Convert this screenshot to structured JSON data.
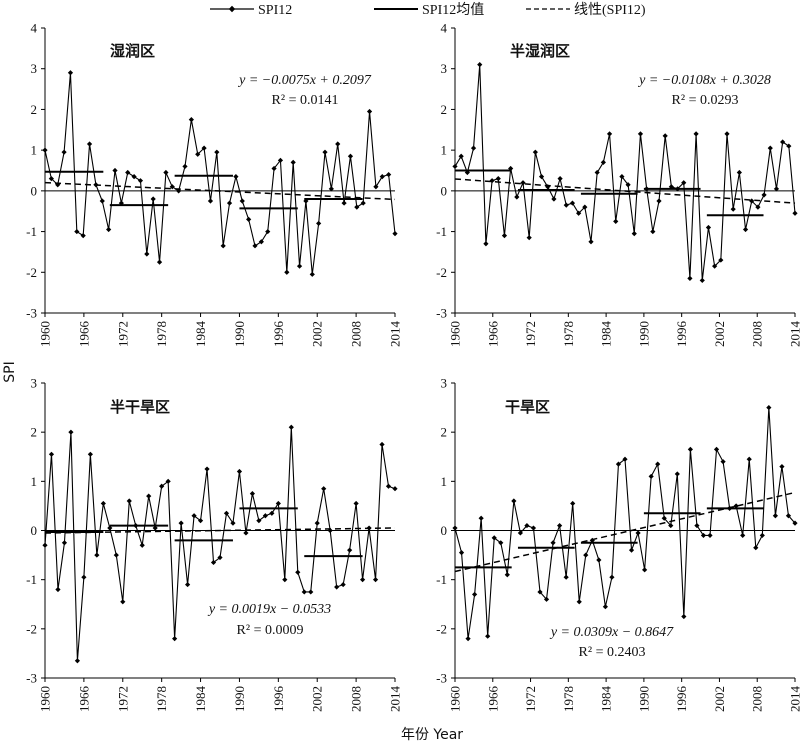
{
  "legend": {
    "items": [
      {
        "label": "SPI12",
        "style": "marker"
      },
      {
        "label": "SPI12均值",
        "style": "solid"
      },
      {
        "label": "线性(SPI12)",
        "style": "dashed"
      }
    ]
  },
  "axes": {
    "ylabel": "SPI",
    "xlabel": "年份 Year"
  },
  "chart_data": [
    {
      "type": "line",
      "title": "湿润区",
      "equation": "y = −0.0075x + 0.2097",
      "r2": "R² = 0.0141",
      "ylim": [
        -3,
        4
      ],
      "yticks": [
        4,
        3,
        2,
        1,
        0,
        -1,
        -2,
        -3
      ],
      "xticks": [
        "1960",
        "1966",
        "1972",
        "1978",
        "1984",
        "1990",
        "1996",
        "2002",
        "2008",
        "2014"
      ],
      "x_start": 1960,
      "x_end": 2014,
      "series": [
        {
          "name": "SPI12",
          "values": [
            1.0,
            0.3,
            0.15,
            0.95,
            2.9,
            -1.0,
            -1.1,
            1.15,
            0.15,
            -0.25,
            -0.95,
            0.5,
            -0.3,
            0.45,
            0.35,
            0.25,
            -1.55,
            -0.2,
            -1.75,
            0.45,
            0.1,
            0.0,
            0.6,
            1.75,
            0.9,
            1.05,
            -0.25,
            0.95,
            -1.35,
            -0.3,
            0.35,
            -0.25,
            -0.7,
            -1.35,
            -1.25,
            -1.0,
            0.55,
            0.75,
            -2.0,
            0.7,
            -1.85,
            -0.25,
            -2.05,
            -0.8,
            0.95,
            0.05,
            1.15,
            -0.3,
            0.85,
            -0.4,
            -0.3,
            1.95,
            0.1,
            0.35,
            0.4,
            -1.05
          ]
        }
      ],
      "means": [
        {
          "x": [
            1960,
            1969
          ],
          "y": 0.47
        },
        {
          "x": [
            1970,
            1979
          ],
          "y": -0.35
        },
        {
          "x": [
            1980,
            1989
          ],
          "y": 0.37
        },
        {
          "x": [
            1990,
            1999
          ],
          "y": -0.43
        },
        {
          "x": [
            2000,
            2009
          ],
          "y": -0.2
        }
      ],
      "trend": {
        "slope": -0.0075,
        "intercept": 0.2097
      }
    },
    {
      "type": "line",
      "title": "半湿润区",
      "equation": "y = −0.0108x + 0.3028",
      "r2": "R² = 0.0293",
      "ylim": [
        -3,
        4
      ],
      "yticks": [
        4,
        3,
        2,
        1,
        0,
        -1,
        -2,
        -3
      ],
      "xticks": [
        "1960",
        "1966",
        "1972",
        "1978",
        "1984",
        "1990",
        "1996",
        "2002",
        "2008",
        "2014"
      ],
      "x_start": 1960,
      "x_end": 2014,
      "series": [
        {
          "name": "SPI12",
          "values": [
            0.6,
            0.85,
            0.45,
            1.05,
            3.1,
            -1.3,
            0.25,
            0.3,
            -1.1,
            0.55,
            -0.15,
            0.2,
            -1.15,
            0.95,
            0.35,
            0.1,
            -0.2,
            0.3,
            -0.35,
            -0.3,
            -0.55,
            -0.4,
            -1.25,
            0.45,
            0.7,
            1.4,
            -0.75,
            0.35,
            0.15,
            -1.05,
            1.4,
            0.05,
            -1.0,
            -0.25,
            1.35,
            0.1,
            0.05,
            0.2,
            -2.15,
            1.4,
            -2.2,
            -0.9,
            -1.85,
            -1.7,
            1.4,
            -0.45,
            0.45,
            -0.95,
            -0.25,
            -0.4,
            -0.1,
            1.05,
            0.05,
            1.2,
            1.1,
            -0.55
          ]
        }
      ],
      "means": [
        {
          "x": [
            1960,
            1969
          ],
          "y": 0.5
        },
        {
          "x": [
            1970,
            1979
          ],
          "y": 0.02
        },
        {
          "x": [
            1980,
            1989
          ],
          "y": -0.07
        },
        {
          "x": [
            1990,
            1999
          ],
          "y": 0.05
        },
        {
          "x": [
            2000,
            2009
          ],
          "y": -0.6
        }
      ],
      "trend": {
        "slope": -0.0108,
        "intercept": 0.3028
      }
    },
    {
      "type": "line",
      "title": "半干旱区",
      "equation": "y = 0.0019x − 0.0533",
      "r2": "R² = 0.0009",
      "ylim": [
        -3,
        3
      ],
      "yticks": [
        3,
        2,
        1,
        0,
        -1,
        -2,
        -3
      ],
      "xticks": [
        "1960",
        "1966",
        "1972",
        "1978",
        "1984",
        "1990",
        "1996",
        "2002",
        "2008",
        "2014"
      ],
      "x_start": 1960,
      "x_end": 2014,
      "series": [
        {
          "name": "SPI12",
          "values": [
            -0.3,
            1.55,
            -1.2,
            -0.25,
            2.0,
            -2.65,
            -0.95,
            1.55,
            -0.5,
            0.55,
            0.05,
            -0.5,
            -1.45,
            0.6,
            0.1,
            -0.3,
            0.7,
            0.05,
            0.9,
            1.0,
            -2.2,
            0.15,
            -1.1,
            0.3,
            0.2,
            1.25,
            -0.65,
            -0.55,
            0.35,
            0.15,
            1.2,
            -0.05,
            0.75,
            0.2,
            0.3,
            0.35,
            0.55,
            -1.0,
            2.1,
            -0.85,
            -1.25,
            -1.25,
            0.15,
            0.85,
            0.0,
            -1.15,
            -1.1,
            -0.4,
            0.55,
            -1.0,
            0.05,
            -1.0,
            1.75,
            0.9,
            0.85
          ]
        }
      ],
      "means": [
        {
          "x": [
            1960,
            1969
          ],
          "y": -0.03
        },
        {
          "x": [
            1970,
            1979
          ],
          "y": 0.1
        },
        {
          "x": [
            1980,
            1989
          ],
          "y": -0.2
        },
        {
          "x": [
            1990,
            1999
          ],
          "y": 0.45
        },
        {
          "x": [
            2000,
            2009
          ],
          "y": -0.52
        }
      ],
      "trend": {
        "slope": 0.0019,
        "intercept": -0.0533
      }
    },
    {
      "type": "line",
      "title": "干旱区",
      "equation": "y = 0.0309x − 0.8647",
      "r2": "R² = 0.2403",
      "ylim": [
        -3,
        3
      ],
      "yticks": [
        3,
        2,
        1,
        0,
        -1,
        -2,
        -3
      ],
      "xticks": [
        "1960",
        "1966",
        "1972",
        "1978",
        "1984",
        "1990",
        "1996",
        "2002",
        "2008",
        "2014"
      ],
      "x_start": 1960,
      "x_end": 2014,
      "series": [
        {
          "name": "SPI12",
          "values": [
            0.05,
            -0.45,
            -2.2,
            -1.3,
            0.25,
            -2.15,
            -0.15,
            -0.25,
            -0.9,
            0.6,
            -0.05,
            0.1,
            0.05,
            -1.25,
            -1.4,
            -0.25,
            0.1,
            -0.95,
            0.55,
            -1.45,
            -0.5,
            -0.2,
            -0.6,
            -1.55,
            -0.95,
            1.35,
            1.45,
            -0.4,
            -0.05,
            -0.8,
            1.1,
            1.35,
            0.25,
            0.1,
            1.15,
            -1.75,
            1.65,
            0.1,
            -0.1,
            -0.1,
            1.65,
            1.4,
            0.45,
            0.5,
            -0.1,
            1.45,
            -0.35,
            -0.1,
            2.5,
            0.3,
            1.3,
            0.3,
            0.15
          ]
        }
      ],
      "means": [
        {
          "x": [
            1960,
            1969
          ],
          "y": -0.75
        },
        {
          "x": [
            1970,
            1979
          ],
          "y": -0.35
        },
        {
          "x": [
            1980,
            1989
          ],
          "y": -0.25
        },
        {
          "x": [
            1990,
            1999
          ],
          "y": 0.35
        },
        {
          "x": [
            2000,
            2009
          ],
          "y": 0.45
        }
      ],
      "trend": {
        "slope": 0.0309,
        "intercept": -0.8647
      }
    }
  ]
}
